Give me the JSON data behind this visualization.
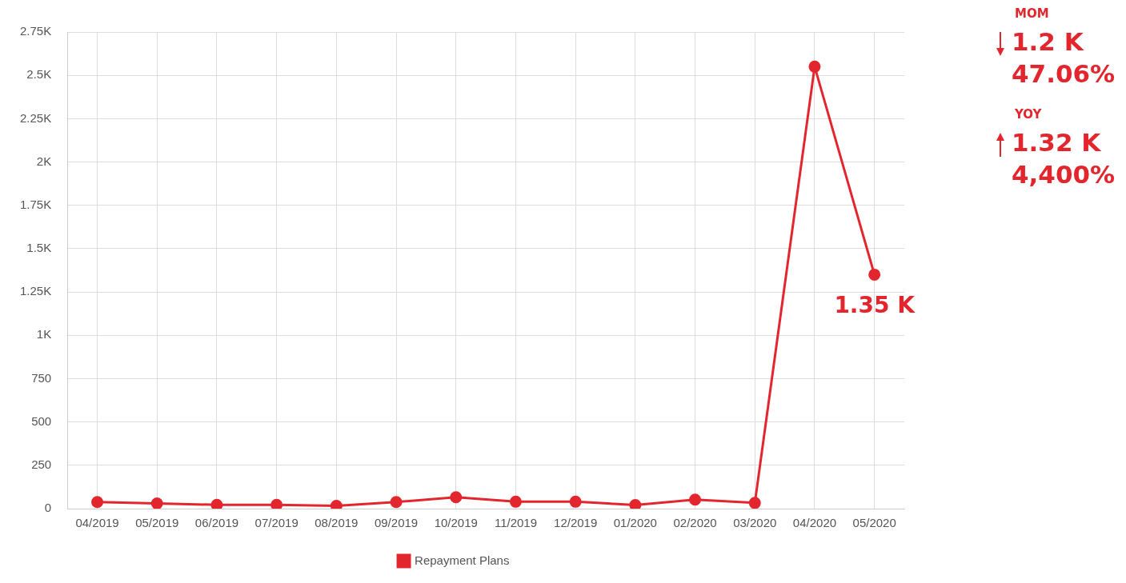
{
  "chart_data": {
    "type": "line",
    "categories": [
      "04/2019",
      "05/2019",
      "06/2019",
      "07/2019",
      "08/2019",
      "09/2019",
      "10/2019",
      "11/2019",
      "12/2019",
      "01/2020",
      "02/2020",
      "03/2020",
      "04/2020",
      "05/2020"
    ],
    "series": [
      {
        "name": "Repayment Plans",
        "color": "#e3262e",
        "values": [
          38,
          30,
          22,
          22,
          16,
          38,
          66,
          40,
          40,
          21,
          52,
          33,
          2550,
          1350
        ],
        "value_labels": [
          null,
          null,
          null,
          null,
          null,
          null,
          null,
          null,
          null,
          null,
          null,
          null,
          null,
          "1.35 K"
        ]
      }
    ],
    "ylim": [
      0,
      2750
    ],
    "yticks": [
      0,
      250,
      500,
      750,
      {
        "value": 1000,
        "label": "1K"
      },
      {
        "value": 1250,
        "label": "1.25K"
      },
      {
        "value": 1500,
        "label": "1.5K"
      },
      {
        "value": 1750,
        "label": "1.75K"
      },
      {
        "value": 2000,
        "label": "2K"
      },
      {
        "value": 2250,
        "label": "2.25K"
      },
      {
        "value": 2500,
        "label": "2.5K"
      },
      {
        "value": 2750,
        "label": "2.75K"
      }
    ],
    "grid": true,
    "legend": "bottom",
    "marker": "circle",
    "line_style": "solid",
    "annotations": [
      "MOM",
      "1.2 K",
      "47.06%",
      "YOY",
      "1.32 K",
      "4,400%"
    ]
  }
}
